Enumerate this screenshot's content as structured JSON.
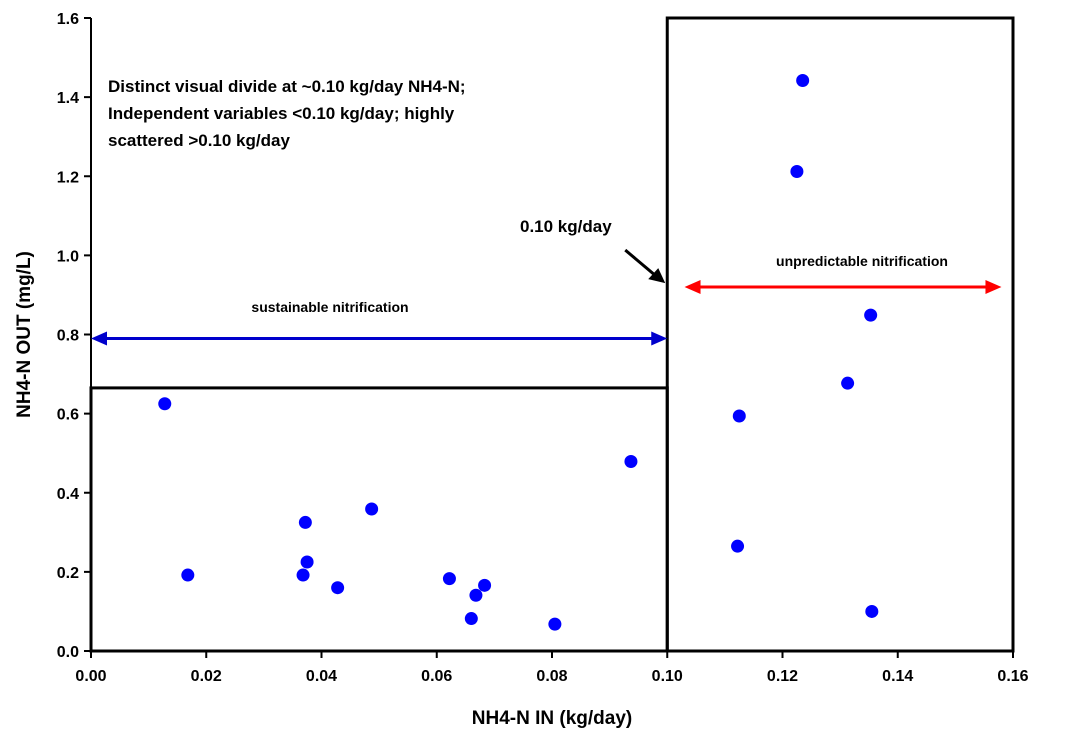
{
  "chart_data": {
    "type": "scatter",
    "title": "",
    "xlabel": "NH4-N IN (kg/day)",
    "ylabel": "NH4-N OUT (mg/L)",
    "xlim": [
      0,
      0.16
    ],
    "ylim": [
      0,
      1.6
    ],
    "x_ticks": [
      "0.00",
      "0.02",
      "0.04",
      "0.06",
      "0.08",
      "0.10",
      "0.12",
      "0.14",
      "0.16"
    ],
    "y_ticks": [
      "0.0",
      "0.2",
      "0.4",
      "0.6",
      "0.8",
      "1.0",
      "1.2",
      "1.4",
      "1.6"
    ],
    "grid": false,
    "legend": "none",
    "marker_color": "#0000ff",
    "points": [
      {
        "x": 0.0128,
        "y": 0.625
      },
      {
        "x": 0.0168,
        "y": 0.192
      },
      {
        "x": 0.0368,
        "y": 0.192
      },
      {
        "x": 0.0372,
        "y": 0.325
      },
      {
        "x": 0.0375,
        "y": 0.225
      },
      {
        "x": 0.0428,
        "y": 0.16
      },
      {
        "x": 0.0487,
        "y": 0.359
      },
      {
        "x": 0.0622,
        "y": 0.183
      },
      {
        "x": 0.066,
        "y": 0.082
      },
      {
        "x": 0.0668,
        "y": 0.141
      },
      {
        "x": 0.0683,
        "y": 0.166
      },
      {
        "x": 0.0805,
        "y": 0.068
      },
      {
        "x": 0.0937,
        "y": 0.479
      },
      {
        "x": 0.1122,
        "y": 0.265
      },
      {
        "x": 0.1125,
        "y": 0.594
      },
      {
        "x": 0.1225,
        "y": 1.212
      },
      {
        "x": 0.1235,
        "y": 1.442
      },
      {
        "x": 0.1313,
        "y": 0.677
      },
      {
        "x": 0.1353,
        "y": 0.849
      },
      {
        "x": 0.1355,
        "y": 0.1
      }
    ],
    "annotations": {
      "note_lines": [
        "Distinct visual divide at ~0.10 kg/day NH4-N;",
        "Independent variables <0.10 kg/day; highly",
        "scattered >0.10 kg/day"
      ],
      "divide_label": "0.10 kg/day",
      "sustainable_label": "sustainable nitrification",
      "unpredictable_label": "unpredictable nitrification",
      "divide_x": 0.1,
      "sustainable_box_top": 0.665,
      "arrow_sustainable": {
        "from": 0.0,
        "to": 0.1,
        "y": 0.79,
        "color": "#0000cc"
      },
      "arrow_unpredictable": {
        "from": 0.103,
        "to": 0.158,
        "y": 0.92,
        "color": "#ff0000"
      }
    }
  }
}
